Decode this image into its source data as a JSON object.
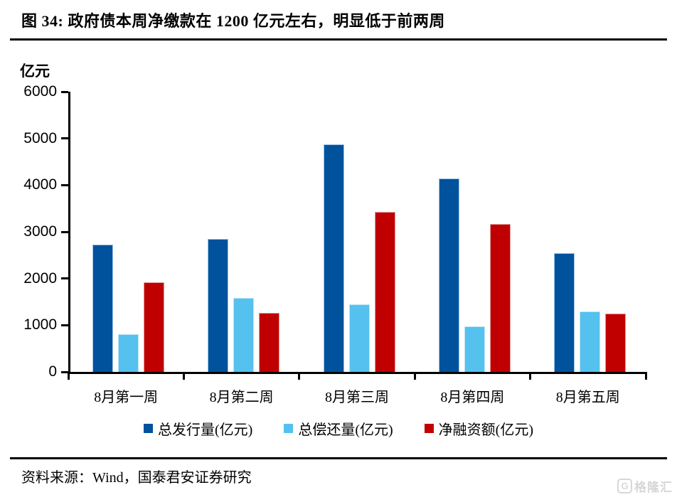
{
  "header": {
    "title": "图 34:  政府债本周净缴款在 1200 亿元左右，明显低于前两周"
  },
  "chart_data": {
    "type": "bar",
    "title": "政府债本周净缴款在 1200 亿元左右，明显低于前两周",
    "unit_label": "亿元",
    "categories": [
      "8月第一周",
      "8月第二周",
      "8月第三周",
      "8月第四周",
      "8月第五周"
    ],
    "series": [
      {
        "name": "总发行量(亿元)",
        "color": "#00529C",
        "edge_color": "#9DC3E6",
        "values": [
          2730,
          2850,
          4880,
          4140,
          2540
        ]
      },
      {
        "name": "总偿还量(亿元)",
        "color": "#55C1EE",
        "edge_color": "#BDE3F6",
        "values": [
          810,
          1590,
          1450,
          980,
          1290
        ]
      },
      {
        "name": "净融资额(亿元)",
        "color": "#C00000",
        "edge_color": "#E09B9B",
        "values": [
          1920,
          1260,
          3430,
          3160,
          1250
        ]
      }
    ],
    "ylim": [
      0,
      6000
    ],
    "yticks": [
      0,
      1000,
      2000,
      3000,
      4000,
      5000,
      6000
    ],
    "grid": false,
    "legend_position": "bottom",
    "axis_color": "#000000"
  },
  "footer": {
    "source": "资料来源：Wind，国泰君安证券研究",
    "watermark_letter": "G",
    "watermark": "格隆汇"
  }
}
